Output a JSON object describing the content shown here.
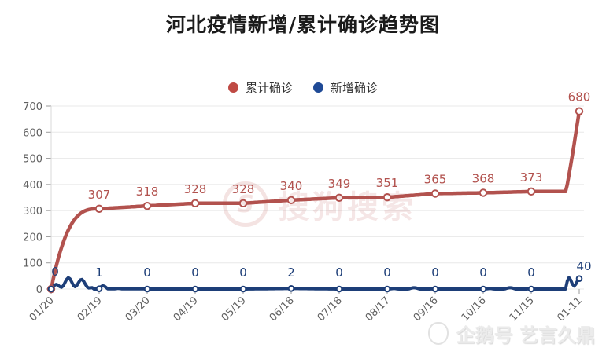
{
  "title": "河北疫情新增/累计确诊趋势图",
  "legend": [
    {
      "label": "累计确诊",
      "color": "#bf4a44"
    },
    {
      "label": "新增确诊",
      "color": "#1f4a96"
    }
  ],
  "watermarks": {
    "center_logo": "S",
    "center": "搜狗搜索",
    "bottom_right": "企鹅号 艺言久鼎"
  },
  "colors": {
    "cumulative_line": "#b2524e",
    "new_line": "#1d3e78",
    "grid": "#e8e8e8",
    "axis_text": "#606060"
  },
  "chart_data": {
    "type": "line",
    "title": "河北疫情新增/累计确诊趋势图",
    "x_labels": [
      "01/20",
      "02/19",
      "03/20",
      "04/19",
      "05/19",
      "06/18",
      "07/18",
      "08/17",
      "09/16",
      "10/16",
      "11/15",
      "01-11"
    ],
    "yticks": [
      0,
      100,
      200,
      300,
      400,
      500,
      600,
      700
    ],
    "ylim": [
      0,
      700
    ],
    "grid": true,
    "legend_position": "top",
    "series": [
      {
        "name": "累计确诊",
        "color": "#b2524e",
        "values": [
          0,
          307,
          318,
          328,
          328,
          340,
          349,
          351,
          365,
          368,
          373,
          680
        ]
      },
      {
        "name": "新增确诊",
        "color": "#1d3e78",
        "values": [
          0,
          1,
          0,
          0,
          0,
          2,
          0,
          0,
          0,
          0,
          0,
          40
        ]
      }
    ]
  }
}
